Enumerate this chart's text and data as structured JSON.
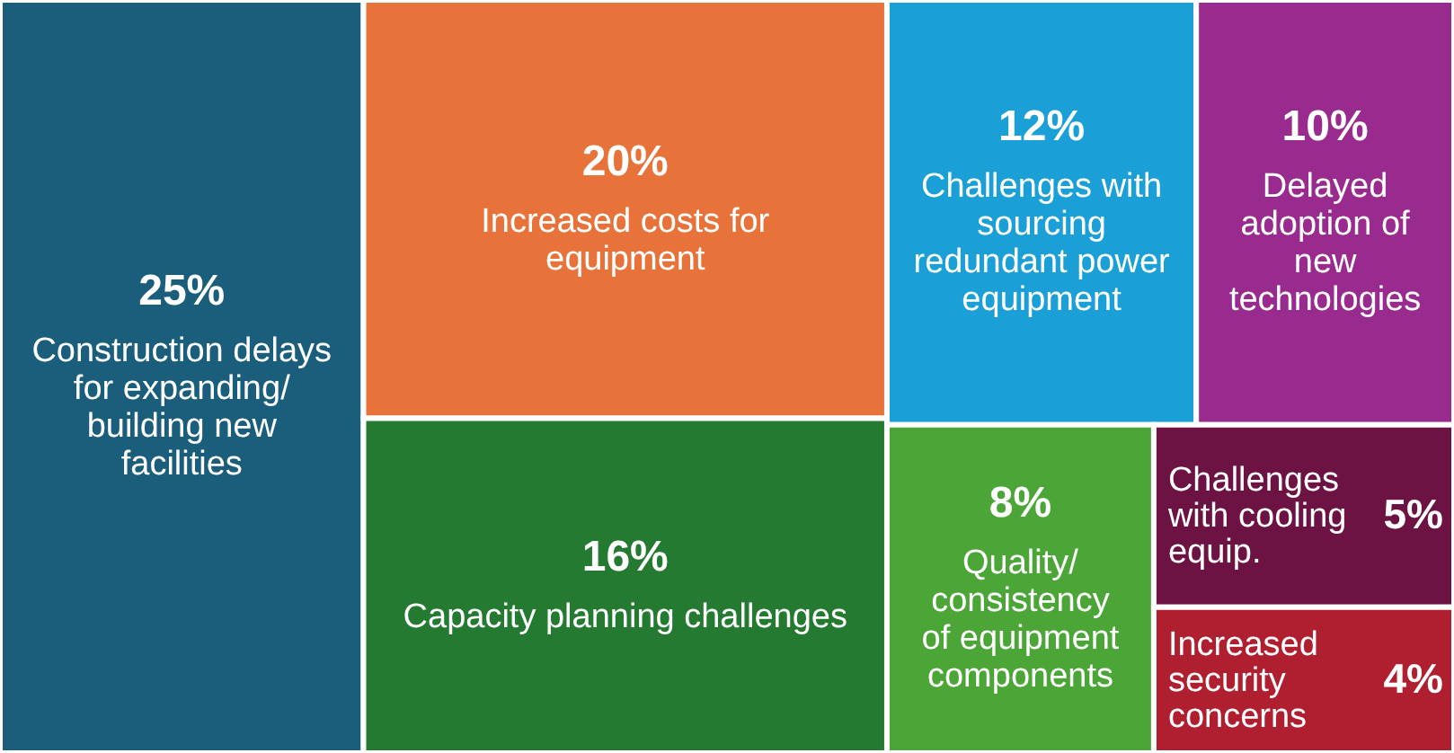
{
  "chart_data": {
    "type": "other",
    "categories": [
      "Construction delays for expanding/ building new facilities",
      "Increased costs for equipment",
      "Capacity planning challenges",
      "Challenges with sourcing redundant power equipment",
      "Delayed adoption of new technologies",
      "Quality/ consistency of equipment components",
      "Challenges with cooling equip.",
      "Increased security concerns"
    ],
    "values": [
      25,
      20,
      16,
      12,
      10,
      8,
      5,
      4
    ],
    "colors": [
      "#1b5e7b",
      "#e8733a",
      "#237a30",
      "#1a9fd6",
      "#9a2b8e",
      "#4ba537",
      "#6c1343",
      "#b01f2f"
    ],
    "value_labels": [
      "25%",
      "20%",
      "16%",
      "12%",
      "10%",
      "8%",
      "5%",
      "4%"
    ]
  }
}
